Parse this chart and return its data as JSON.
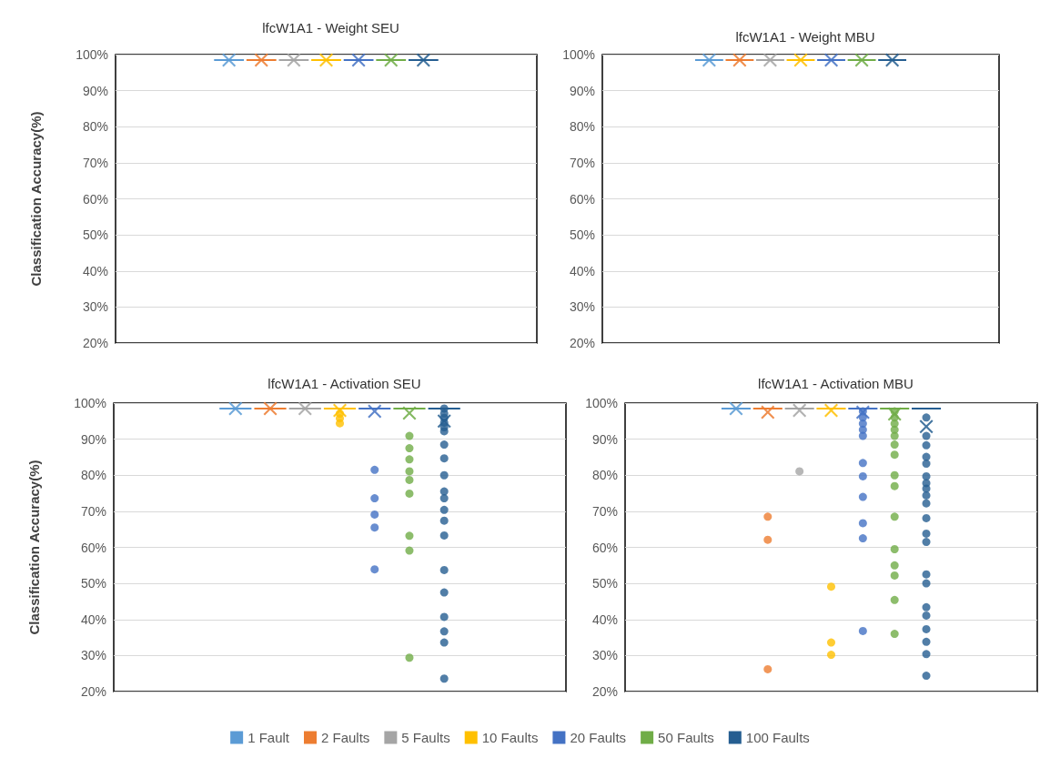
{
  "chart_data": [
    {
      "type": "box",
      "title": "lfcW1A1 - Weight SEU",
      "ylabel": "Classification Accuracy(%)",
      "legend": "bottom",
      "categories": [
        null
      ],
      "ylim": [
        20,
        100
      ],
      "yticks": [
        {
          "value": 20,
          "label": "20%"
        },
        {
          "value": 30,
          "label": "30%"
        },
        {
          "value": 40,
          "label": "40%"
        },
        {
          "value": 50,
          "label": "50%"
        },
        {
          "value": 60,
          "label": "60%"
        },
        {
          "value": 70,
          "label": "70%"
        },
        {
          "value": 80,
          "label": "80%"
        },
        {
          "value": 90,
          "label": "90%"
        },
        {
          "value": 100,
          "label": "100%"
        }
      ],
      "grid": "y",
      "tick_labels": "y",
      "marker": "circle",
      "series": [
        {
          "name": "1 Fault",
          "color": "#5b9bd5",
          "boxes": [
            {
              "low": 98.5,
              "q1": 98.5,
              "median": 98.5,
              "q3": 98.5,
              "high": 98.5,
              "mean": 98.5
            }
          ]
        },
        {
          "name": "2 Faults",
          "color": "#ed7d31",
          "boxes": [
            {
              "low": 98.5,
              "q1": 98.5,
              "median": 98.5,
              "q3": 98.5,
              "high": 98.5,
              "mean": 98.5
            }
          ]
        },
        {
          "name": "5 Faults",
          "color": "#a5a5a5",
          "boxes": [
            {
              "low": 98.5,
              "q1": 98.5,
              "median": 98.5,
              "q3": 98.5,
              "high": 98.5,
              "mean": 98.5
            }
          ]
        },
        {
          "name": "10 Faults",
          "color": "#ffc000",
          "boxes": [
            {
              "low": 98.5,
              "q1": 98.5,
              "median": 98.5,
              "q3": 98.5,
              "high": 98.5,
              "mean": 98.5
            }
          ]
        },
        {
          "name": "20 Faults",
          "color": "#4472c4",
          "boxes": [
            {
              "low": 98.5,
              "q1": 98.5,
              "median": 98.5,
              "q3": 98.5,
              "high": 98.5,
              "mean": 98.5
            }
          ]
        },
        {
          "name": "50 Faults",
          "color": "#70ad47",
          "boxes": [
            {
              "low": 98.5,
              "q1": 98.5,
              "median": 98.5,
              "q3": 98.5,
              "high": 98.5,
              "mean": 98.5
            }
          ]
        },
        {
          "name": "100 Faults",
          "color": "#255e91",
          "boxes": [
            {
              "low": 98.5,
              "q1": 98.5,
              "median": 98.5,
              "q3": 98.5,
              "high": 98.5,
              "mean": 98.5
            }
          ]
        }
      ]
    },
    {
      "type": "box",
      "title": "lfcW1A1 - Weight MBU",
      "categories": [
        null
      ],
      "ylim": [
        20,
        100
      ],
      "yticks": [
        {
          "value": 20,
          "label": "20%"
        },
        {
          "value": 30,
          "label": "30%"
        },
        {
          "value": 40,
          "label": "40%"
        },
        {
          "value": 50,
          "label": "50%"
        },
        {
          "value": 60,
          "label": "60%"
        },
        {
          "value": 70,
          "label": "70%"
        },
        {
          "value": 80,
          "label": "80%"
        },
        {
          "value": 90,
          "label": "90%"
        },
        {
          "value": 100,
          "label": "100%"
        }
      ],
      "grid": "y",
      "tick_labels": "y",
      "marker": "circle",
      "series": [
        {
          "color": "#5b9bd5",
          "boxes": [
            {
              "low": 98.5,
              "q1": 98.5,
              "median": 98.5,
              "q3": 98.5,
              "high": 98.5,
              "mean": 98.5
            }
          ]
        },
        {
          "color": "#ed7d31",
          "boxes": [
            {
              "low": 98.5,
              "q1": 98.5,
              "median": 98.5,
              "q3": 98.5,
              "high": 98.5,
              "mean": 98.5
            }
          ]
        },
        {
          "color": "#a5a5a5",
          "boxes": [
            {
              "low": 98.5,
              "q1": 98.5,
              "median": 98.5,
              "q3": 98.5,
              "high": 98.5,
              "mean": 98.5
            }
          ]
        },
        {
          "color": "#ffc000",
          "boxes": [
            {
              "low": 98.5,
              "q1": 98.5,
              "median": 98.5,
              "q3": 98.5,
              "high": 98.5,
              "mean": 98.5
            }
          ]
        },
        {
          "color": "#4472c4",
          "boxes": [
            {
              "low": 98.5,
              "q1": 98.5,
              "median": 98.5,
              "q3": 98.5,
              "high": 98.5,
              "mean": 98.5
            }
          ]
        },
        {
          "color": "#70ad47",
          "boxes": [
            {
              "low": 98.5,
              "q1": 98.5,
              "median": 98.5,
              "q3": 98.5,
              "high": 98.5,
              "mean": 98.5
            }
          ]
        },
        {
          "color": "#255e91",
          "boxes": [
            {
              "low": 98.5,
              "q1": 98.5,
              "median": 98.5,
              "q3": 98.5,
              "high": 98.5,
              "mean": 98.5
            }
          ]
        }
      ]
    },
    {
      "type": "box",
      "title": "lfcW1A1 - Activation SEU",
      "ylabel": "Classification Accuracy(%)",
      "categories": [
        null
      ],
      "ylim": [
        20,
        100
      ],
      "yticks": [
        {
          "value": 20,
          "label": "20%"
        },
        {
          "value": 30,
          "label": "30%"
        },
        {
          "value": 40,
          "label": "40%"
        },
        {
          "value": 50,
          "label": "50%"
        },
        {
          "value": 60,
          "label": "60%"
        },
        {
          "value": 70,
          "label": "70%"
        },
        {
          "value": 80,
          "label": "80%"
        },
        {
          "value": 90,
          "label": "90%"
        },
        {
          "value": 100,
          "label": "100%"
        }
      ],
      "grid": "y",
      "tick_labels": "y",
      "marker": "circle",
      "series": [
        {
          "color": "#5b9bd5",
          "boxes": [
            {
              "low": 98.5,
              "q1": 98.5,
              "median": 98.5,
              "q3": 98.5,
              "high": 98.5,
              "mean": 98.5
            }
          ]
        },
        {
          "color": "#ed7d31",
          "boxes": [
            {
              "low": 98.5,
              "q1": 98.5,
              "median": 98.5,
              "q3": 98.5,
              "high": 98.5,
              "mean": 98.5
            }
          ]
        },
        {
          "color": "#a5a5a5",
          "boxes": [
            {
              "low": 98.5,
              "q1": 98.5,
              "median": 98.5,
              "q3": 98.5,
              "high": 98.5,
              "mean": 98.5
            }
          ]
        },
        {
          "color": "#ffc000",
          "boxes": [
            {
              "low": 98.5,
              "q1": 98.5,
              "median": 98.5,
              "q3": 98.5,
              "high": 98.5,
              "mean": 98,
              "outliers": [
                97.1,
                95.8,
                94.4
              ]
            }
          ]
        },
        {
          "color": "#4472c4",
          "boxes": [
            {
              "low": 98.5,
              "q1": 98.5,
              "median": 98.5,
              "q3": 98.5,
              "high": 98.5,
              "mean": 97.7,
              "outliers": [
                81.5,
                73.6,
                69.1,
                65.5,
                53.9
              ]
            }
          ]
        },
        {
          "color": "#70ad47",
          "boxes": [
            {
              "low": 98.5,
              "q1": 98.5,
              "median": 98.5,
              "q3": 98.5,
              "high": 98.5,
              "mean": 97.2,
              "outliers": [
                90.9,
                87.5,
                84.4,
                81.1,
                78.7,
                74.9,
                63.2,
                59.1,
                29.4
              ]
            }
          ]
        },
        {
          "color": "#255e91",
          "boxes": [
            {
              "low": 98.5,
              "q1": 98.5,
              "median": 98.5,
              "q3": 98.5,
              "high": 98.5,
              "mean": 95,
              "outliers": [
                98.5,
                97.1,
                95.9,
                94.6,
                93.3,
                92.2,
                88.5,
                84.7,
                80,
                75.5,
                73.6,
                70.4,
                67.4,
                63.3,
                53.7,
                47.5,
                40.7,
                36.7,
                33.6,
                23.6
              ]
            }
          ]
        }
      ]
    },
    {
      "type": "box",
      "title": "lfcW1A1 - Activation MBU",
      "categories": [
        null
      ],
      "ylim": [
        20,
        100
      ],
      "yticks": [
        {
          "value": 20,
          "label": "20%"
        },
        {
          "value": 30,
          "label": "30%"
        },
        {
          "value": 40,
          "label": "40%"
        },
        {
          "value": 50,
          "label": "50%"
        },
        {
          "value": 60,
          "label": "60%"
        },
        {
          "value": 70,
          "label": "70%"
        },
        {
          "value": 80,
          "label": "80%"
        },
        {
          "value": 90,
          "label": "90%"
        },
        {
          "value": 100,
          "label": "100%"
        }
      ],
      "grid": "y",
      "tick_labels": "y",
      "marker": "circle",
      "series": [
        {
          "color": "#5b9bd5",
          "boxes": [
            {
              "low": 98.5,
              "q1": 98.5,
              "median": 98.5,
              "q3": 98.5,
              "high": 98.5,
              "mean": 98.5
            }
          ]
        },
        {
          "color": "#ed7d31",
          "boxes": [
            {
              "low": 98.5,
              "q1": 98.5,
              "median": 98.5,
              "q3": 98.5,
              "high": 98.5,
              "mean": 97.5,
              "outliers": [
                68.5,
                62.1,
                26.2
              ]
            }
          ]
        },
        {
          "color": "#a5a5a5",
          "boxes": [
            {
              "low": 98.5,
              "q1": 98.5,
              "median": 98.5,
              "q3": 98.5,
              "high": 98.5,
              "mean": 98,
              "outliers": [
                81.1
              ]
            }
          ]
        },
        {
          "color": "#ffc000",
          "boxes": [
            {
              "low": 98.5,
              "q1": 98.5,
              "median": 98.5,
              "q3": 98.5,
              "high": 98.5,
              "mean": 98,
              "outliers": [
                49.1,
                33.6,
                30.2
              ]
            }
          ]
        },
        {
          "color": "#4472c4",
          "boxes": [
            {
              "low": 98.5,
              "q1": 98.5,
              "median": 98.5,
              "q3": 98.5,
              "high": 98.5,
              "mean": 97.5,
              "outliers": [
                97.7,
                96,
                94.3,
                92.6,
                90.9,
                83.4,
                79.7,
                74,
                66.7,
                62.5,
                36.8
              ]
            }
          ]
        },
        {
          "color": "#70ad47",
          "boxes": [
            {
              "low": 98.5,
              "q1": 98.5,
              "median": 98.5,
              "q3": 98.5,
              "high": 98.5,
              "mean": 97,
              "outliers": [
                97.7,
                96,
                94.3,
                92.6,
                90.9,
                88.5,
                85.7,
                80,
                77,
                68.5,
                59.5,
                55,
                52.2,
                45.4,
                36
              ]
            }
          ]
        },
        {
          "color": "#255e91",
          "boxes": [
            {
              "low": 98.5,
              "q1": 98.5,
              "median": 98.5,
              "q3": 98.5,
              "high": 98.5,
              "mean": 93.5,
              "outliers": [
                96,
                90.9,
                88.3,
                85.1,
                83.2,
                79.7,
                77.8,
                76.3,
                74.4,
                72.2,
                68.1,
                63.8,
                61.5,
                52.5,
                50,
                43.4,
                41.1,
                37.3,
                33.8,
                30.4,
                24.4
              ]
            }
          ]
        }
      ]
    }
  ]
}
